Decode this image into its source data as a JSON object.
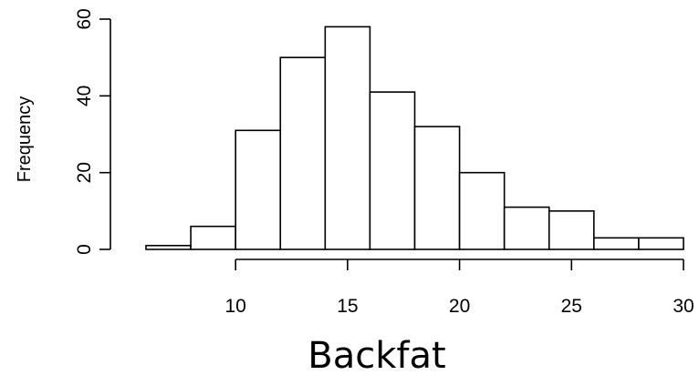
{
  "chart_data": {
    "type": "bar",
    "chart_kind": "histogram",
    "title": "",
    "xlabel": "Backfat",
    "ylabel": "Frequency",
    "bins": [
      {
        "start": 6,
        "end": 8,
        "count": 1
      },
      {
        "start": 8,
        "end": 10,
        "count": 6
      },
      {
        "start": 10,
        "end": 12,
        "count": 31
      },
      {
        "start": 12,
        "end": 14,
        "count": 50
      },
      {
        "start": 14,
        "end": 16,
        "count": 58
      },
      {
        "start": 16,
        "end": 18,
        "count": 41
      },
      {
        "start": 18,
        "end": 20,
        "count": 32
      },
      {
        "start": 20,
        "end": 22,
        "count": 20
      },
      {
        "start": 22,
        "end": 24,
        "count": 11
      },
      {
        "start": 24,
        "end": 26,
        "count": 10
      },
      {
        "start": 26,
        "end": 28,
        "count": 3
      },
      {
        "start": 28,
        "end": 30,
        "count": 3
      }
    ],
    "xlim": [
      6,
      30
    ],
    "ylim": [
      0,
      60
    ],
    "xticks": [
      "10",
      "15",
      "20",
      "25",
      "30"
    ],
    "yticks": [
      "0",
      "20",
      "40",
      "60"
    ],
    "grid": false,
    "legend": "none",
    "bar_fill": "#ffffff",
    "bar_stroke": "#000000"
  }
}
